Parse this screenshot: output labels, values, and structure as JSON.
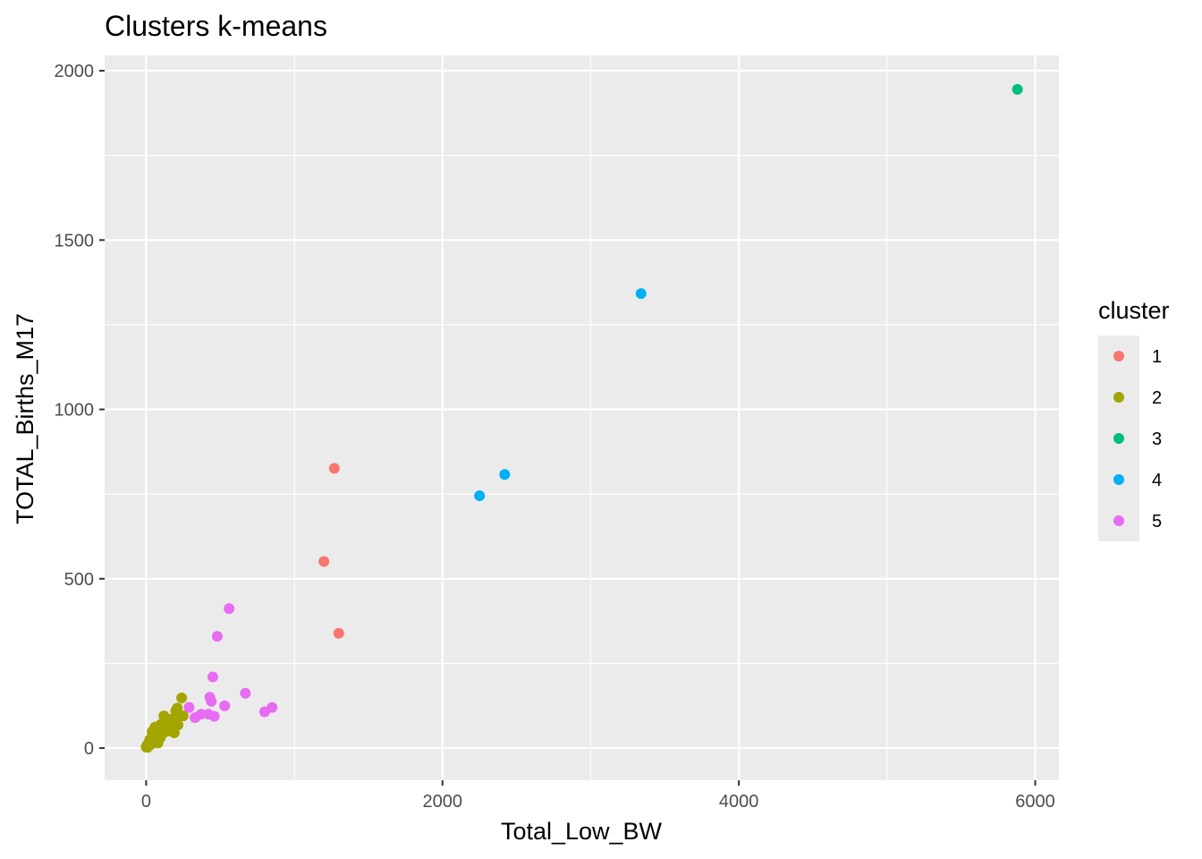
{
  "chart_data": {
    "type": "scatter",
    "title": "Clusters k-means",
    "xlabel": "Total_Low_BW",
    "ylabel": "TOTAL_Births_M17",
    "xlim": [
      -280,
      6160
    ],
    "ylim": [
      -95,
      2045
    ],
    "x_ticks": [
      0,
      2000,
      4000,
      6000
    ],
    "x_tick_labels": [
      "0",
      "2000",
      "4000",
      "6000"
    ],
    "y_ticks": [
      0,
      500,
      1000,
      1500,
      2000
    ],
    "y_tick_labels": [
      "0",
      "500",
      "1000",
      "1500",
      "2000"
    ],
    "grid": true,
    "legend": {
      "title": "cluster",
      "placement": "right",
      "entries": [
        "1",
        "2",
        "3",
        "4",
        "5"
      ]
    },
    "colors": {
      "1": "#F8766D",
      "2": "#A3A500",
      "3": "#00BF7D",
      "4": "#00B0F6",
      "5": "#E76BF3",
      "panel": "#EBEBEB",
      "grid": "#FFFFFF"
    },
    "series": [
      {
        "name": "1",
        "points": [
          [
            1270,
            826
          ],
          [
            1200,
            551
          ],
          [
            1300,
            339
          ]
        ]
      },
      {
        "name": "2",
        "points": [
          [
            0,
            3
          ],
          [
            5,
            8
          ],
          [
            10,
            5
          ],
          [
            15,
            12
          ],
          [
            20,
            18
          ],
          [
            25,
            25
          ],
          [
            30,
            10
          ],
          [
            35,
            30
          ],
          [
            40,
            20
          ],
          [
            45,
            15
          ],
          [
            50,
            35
          ],
          [
            55,
            40
          ],
          [
            60,
            28
          ],
          [
            65,
            45
          ],
          [
            70,
            55
          ],
          [
            75,
            22
          ],
          [
            80,
            38
          ],
          [
            85,
            60
          ],
          [
            90,
            48
          ],
          [
            95,
            30
          ],
          [
            100,
            70
          ],
          [
            105,
            52
          ],
          [
            110,
            42
          ],
          [
            115,
            65
          ],
          [
            120,
            95
          ],
          [
            125,
            58
          ],
          [
            130,
            75
          ],
          [
            140,
            50
          ],
          [
            150,
            62
          ],
          [
            160,
            85
          ],
          [
            170,
            55
          ],
          [
            180,
            72
          ],
          [
            190,
            45
          ],
          [
            200,
            110
          ],
          [
            205,
            88
          ],
          [
            210,
            118
          ],
          [
            215,
            68
          ],
          [
            240,
            148
          ],
          [
            250,
            95
          ],
          [
            60,
            62
          ],
          [
            40,
            48
          ],
          [
            20,
            10
          ],
          [
            10,
            2
          ],
          [
            80,
            15
          ]
        ]
      },
      {
        "name": "3",
        "points": [
          [
            5880,
            1945
          ]
        ]
      },
      {
        "name": "4",
        "points": [
          [
            3340,
            1342
          ],
          [
            2420,
            808
          ],
          [
            2250,
            745
          ]
        ]
      },
      {
        "name": "5",
        "points": [
          [
            560,
            412
          ],
          [
            480,
            330
          ],
          [
            450,
            210
          ],
          [
            670,
            162
          ],
          [
            430,
            150
          ],
          [
            440,
            138
          ],
          [
            290,
            120
          ],
          [
            530,
            125
          ],
          [
            850,
            120
          ],
          [
            800,
            107
          ],
          [
            420,
            100
          ],
          [
            370,
            100
          ],
          [
            460,
            94
          ],
          [
            330,
            90
          ]
        ]
      }
    ]
  }
}
